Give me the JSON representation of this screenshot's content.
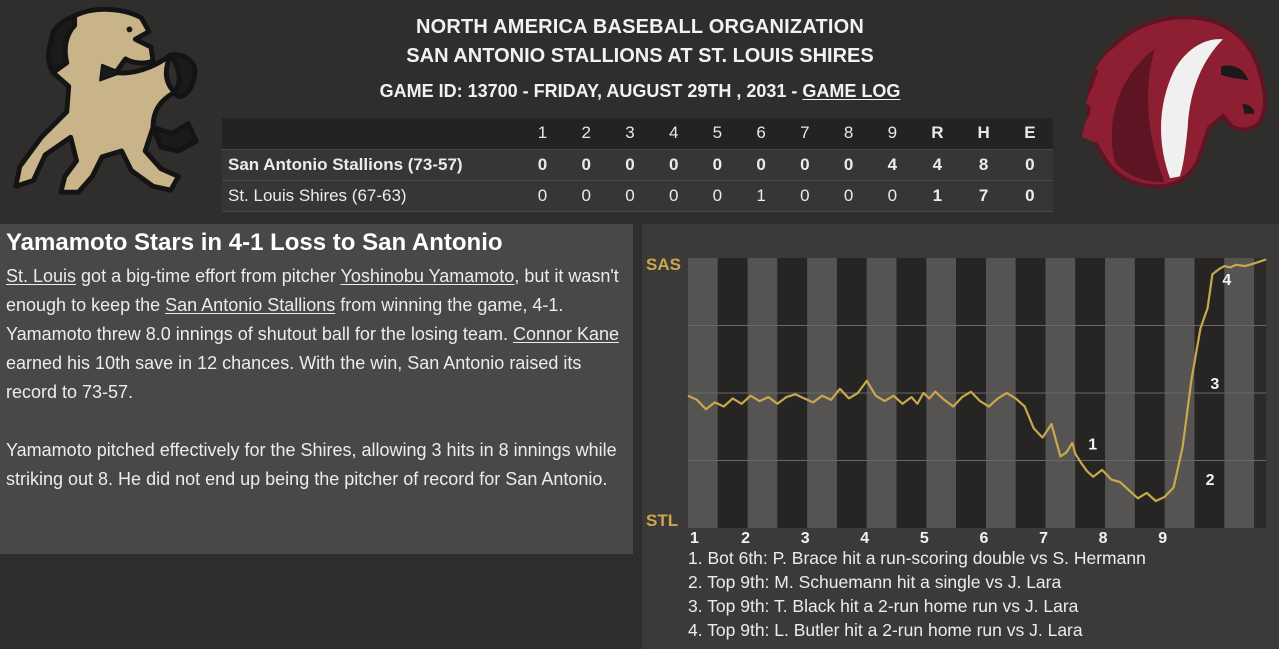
{
  "header": {
    "organization": "NORTH AMERICA BASEBALL ORGANIZATION",
    "matchup": "SAN ANTONIO STALLIONS AT ST. LOUIS SHIRES",
    "game_info": "GAME ID: 13700 - FRIDAY, AUGUST 29TH , 2031 - ",
    "game_log_link": "GAME LOG"
  },
  "logos": {
    "away": {
      "icon": "stallion-rearing-horse-icon",
      "color": "#c9b48a"
    },
    "home": {
      "icon": "horse-head-icon",
      "color": "#8e1f32"
    }
  },
  "box_score": {
    "columns": [
      "1",
      "2",
      "3",
      "4",
      "5",
      "6",
      "7",
      "8",
      "9",
      "R",
      "H",
      "E"
    ],
    "rows": [
      {
        "team": "San Antonio Stallions (73-57)",
        "innings": [
          "0",
          "0",
          "0",
          "0",
          "0",
          "0",
          "0",
          "0",
          "4"
        ],
        "r": "4",
        "h": "8",
        "e": "0"
      },
      {
        "team": "St. Louis Shires (67-63)",
        "innings": [
          "0",
          "0",
          "0",
          "0",
          "0",
          "1",
          "0",
          "0",
          "0"
        ],
        "r": "1",
        "h": "7",
        "e": "0"
      }
    ]
  },
  "story": {
    "headline": "Yamamoto Stars in 4-1 Loss to San Antonio",
    "p1": {
      "link1": "St. Louis",
      "t1": " got a big-time effort from pitcher ",
      "link2": "Yoshinobu Yamamoto",
      "t2": ", but it wasn't enough to keep the ",
      "link3": "San Antonio Stallions",
      "t3": " from winning the game, 4-1. Yamamoto threw 8.0 innings of shutout ball for the losing team. ",
      "link4": "Connor Kane",
      "t4": " earned his 10th save in 12 chances. With the win, San Antonio raised its record to 73-57."
    },
    "p2": "Yamamoto pitched effectively for the Shires, allowing 3 hits in 8 innings while striking out 8. He did not end up being the pitcher of record for San Antonio."
  },
  "chart_data": {
    "type": "line",
    "series_color": "#c9a84c",
    "top_label": "SAS",
    "bottom_label": "STL",
    "x_ticks": [
      "1",
      "2",
      "3",
      "4",
      "5",
      "6",
      "7",
      "8",
      "9"
    ],
    "xlim": [
      0,
      9.7
    ],
    "ylim": [
      -1,
      1
    ],
    "grid": true,
    "series": [
      {
        "x": [
          0,
          0.15,
          0.3,
          0.45,
          0.6,
          0.75,
          0.9,
          1.05,
          1.2,
          1.35,
          1.5,
          1.65,
          1.8,
          1.95,
          2.1,
          2.25,
          2.4,
          2.55,
          2.7,
          2.85,
          3.0,
          3.15,
          3.3,
          3.45,
          3.6,
          3.75,
          3.85,
          3.95,
          4.05,
          4.15,
          4.3,
          4.45,
          4.6,
          4.75,
          4.9,
          5.05,
          5.2,
          5.35,
          5.5,
          5.65,
          5.8,
          5.95,
          6.1,
          6.25,
          6.35,
          6.45,
          6.5,
          6.6,
          6.7,
          6.8,
          6.95,
          7.1,
          7.25,
          7.4,
          7.55,
          7.7,
          7.85,
          8.0,
          8.15,
          8.3,
          8.45,
          8.6,
          8.72,
          8.8,
          8.86,
          8.92,
          9.0,
          9.1,
          9.2,
          9.35,
          9.5,
          9.7
        ],
        "y": [
          -0.02,
          -0.05,
          -0.12,
          -0.07,
          -0.1,
          -0.04,
          -0.08,
          -0.02,
          -0.06,
          -0.03,
          -0.08,
          -0.03,
          -0.01,
          -0.04,
          -0.07,
          -0.02,
          -0.05,
          0.03,
          -0.04,
          0.0,
          0.09,
          -0.02,
          -0.06,
          -0.02,
          -0.08,
          -0.03,
          -0.08,
          0.0,
          -0.04,
          0.01,
          -0.05,
          -0.1,
          -0.03,
          0.01,
          -0.06,
          -0.1,
          -0.04,
          -0.0,
          -0.04,
          -0.1,
          -0.26,
          -0.33,
          -0.23,
          -0.47,
          -0.44,
          -0.37,
          -0.45,
          -0.52,
          -0.58,
          -0.62,
          -0.57,
          -0.64,
          -0.66,
          -0.72,
          -0.78,
          -0.74,
          -0.8,
          -0.77,
          -0.7,
          -0.4,
          0.1,
          0.48,
          0.63,
          0.88,
          0.9,
          0.92,
          0.94,
          0.93,
          0.95,
          0.94,
          0.96,
          0.99
        ]
      }
    ],
    "annotations": [
      {
        "label": "1",
        "x": 6.65,
        "y": -0.42
      },
      {
        "label": "2",
        "x": 8.62,
        "y": -0.68
      },
      {
        "label": "3",
        "x": 8.7,
        "y": 0.03
      },
      {
        "label": "4",
        "x": 8.9,
        "y": 0.8
      }
    ]
  },
  "scoring_notes": [
    "1. Bot 6th: P. Brace hit a run-scoring double vs S. Hermann",
    "2. Top 9th: M. Schuemann hit a single vs J. Lara",
    "3. Top 9th: T. Black hit a 2-run home run vs J. Lara",
    "4. Top 9th: L. Butler hit a 2-run home run vs J. Lara"
  ]
}
